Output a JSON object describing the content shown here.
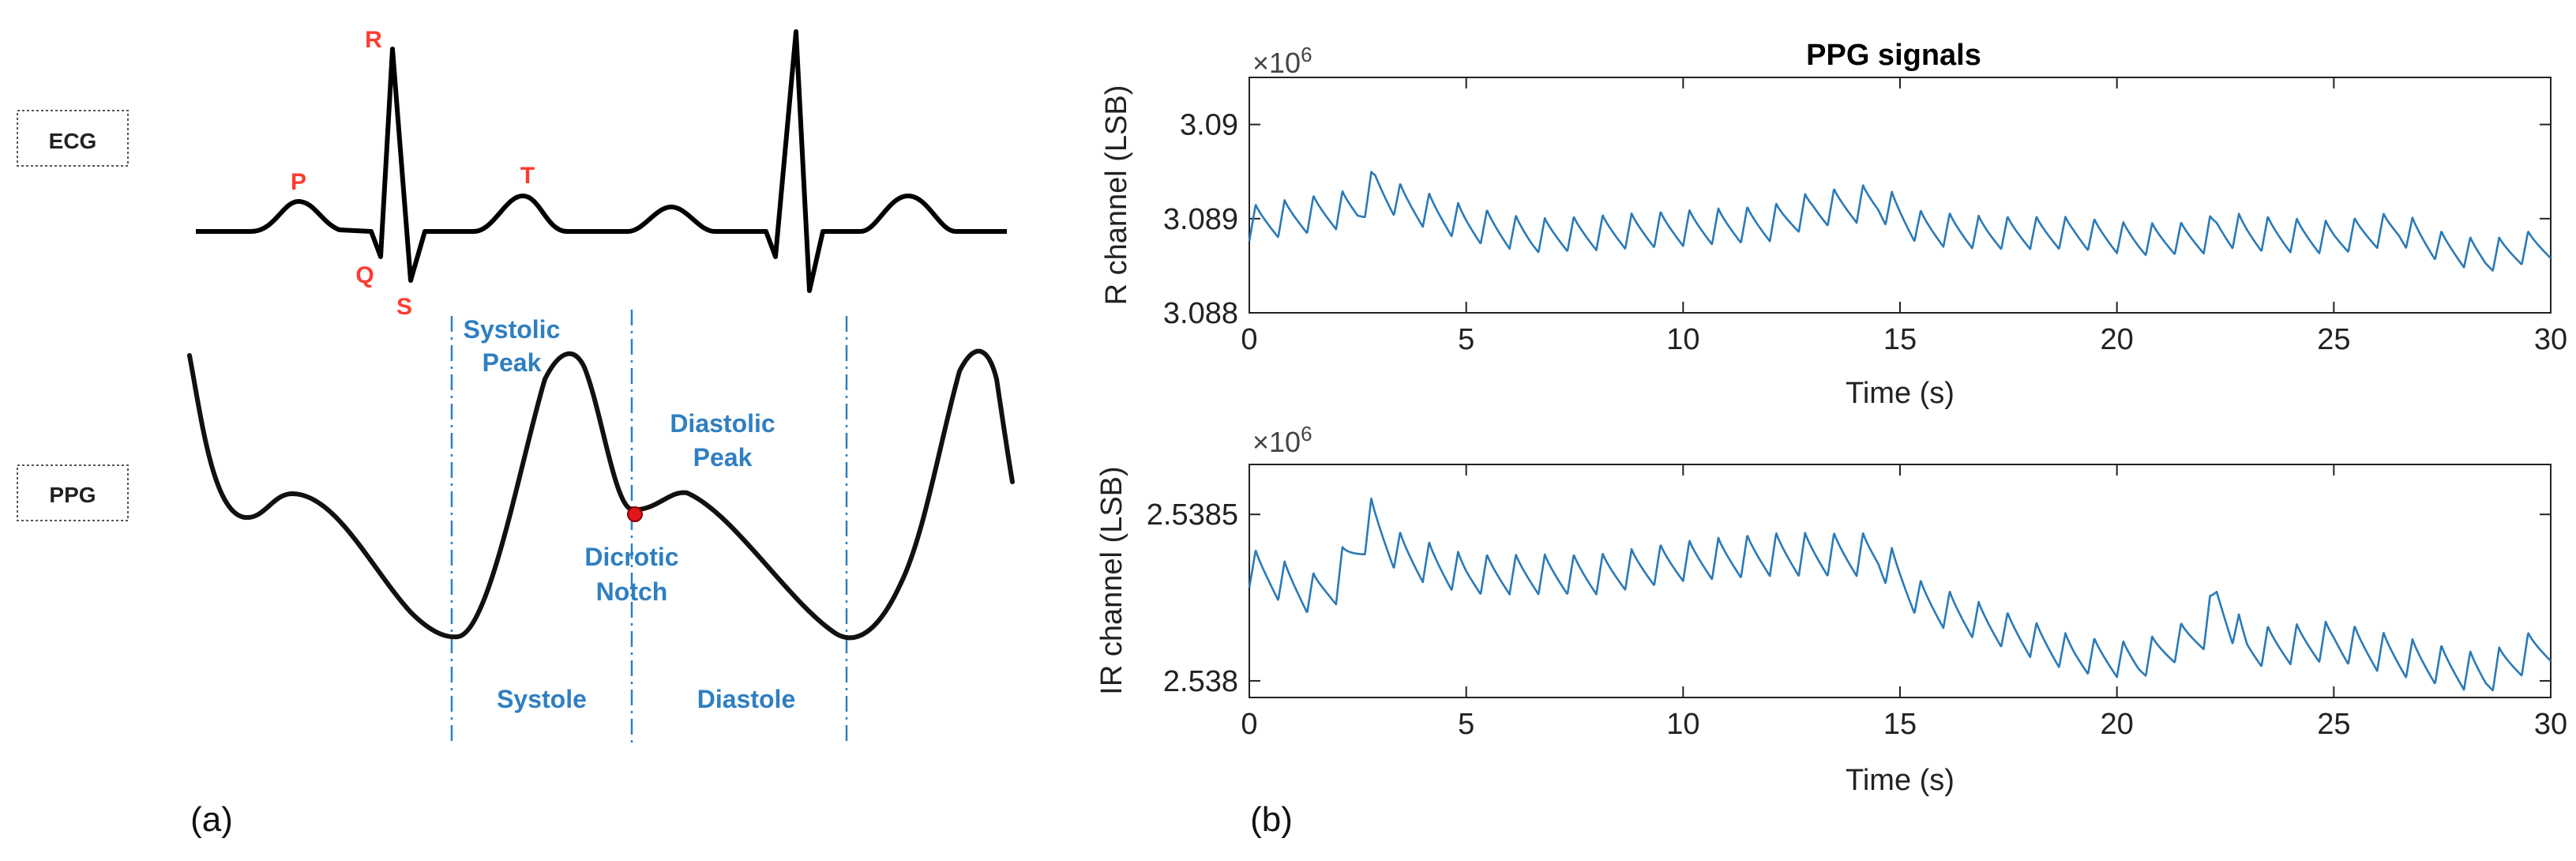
{
  "panel_a": {
    "panel_label": "(a)",
    "ecg_box_label": "ECG",
    "ppg_box_label": "PPG",
    "wave_labels": {
      "p": "P",
      "q": "Q",
      "r": "R",
      "s": "S",
      "t": "T"
    },
    "systolic_peak_line1": "Systolic",
    "systolic_peak_line2": "Peak",
    "diastolic_peak_line1": "Diastolic",
    "diastolic_peak_line2": "Peak",
    "dicrotic_notch_line1": "Dicrotic",
    "dicrotic_notch_line2": "Notch",
    "systole_label": "Systole",
    "diastole_label": "Diastole",
    "label_colors": {
      "ecg_wave": "#ff3b30",
      "ppg": "#2f7fc1",
      "notch_marker": "#e0161a"
    }
  },
  "panel_b": {
    "panel_label": "(b)",
    "title": "PPG signals",
    "series_color": "#2a7ab8",
    "r_plot": {
      "ylabel": "R channel (LSB)",
      "xlabel": "Time (s)",
      "exponent_base": "×10",
      "exponent_power": "6",
      "x_ticks": [
        "0",
        "5",
        "10",
        "15",
        "20",
        "25",
        "30"
      ],
      "y_ticks": [
        "3.09",
        "3.089",
        "3.088"
      ],
      "xlim": [
        0,
        30
      ],
      "ylim": [
        3.088,
        3.0905
      ]
    },
    "ir_plot": {
      "ylabel": "IR channel (LSB)",
      "xlabel": "Time (s)",
      "exponent_base": "×10",
      "exponent_power": "6",
      "x_ticks": [
        "0",
        "5",
        "10",
        "15",
        "20",
        "25",
        "30"
      ],
      "y_ticks": [
        "2.5385",
        "2.538"
      ],
      "xlim": [
        0,
        30
      ],
      "ylim": [
        2.53795,
        2.53865
      ]
    }
  },
  "chart_data": [
    {
      "type": "line",
      "title": "PPG signals",
      "xlabel": "Time (s)",
      "ylabel": "R channel (LSB)",
      "y_scale_factor": "×10^6",
      "xlim": [
        0,
        30
      ],
      "ylim": [
        3.088,
        3.0905
      ],
      "x_ticks": [
        0,
        5,
        10,
        15,
        20,
        25,
        30
      ],
      "y_ticks": [
        3.088,
        3.089,
        3.09
      ],
      "series": [
        {
          "color": "#2a7ab8",
          "pulse_rate_hz": 1.5,
          "x": [
            0,
            2.5,
            2.9,
            3.5,
            5,
            6.5,
            8,
            10,
            12,
            13,
            14.5,
            15.5,
            17,
            19,
            20.5,
            22,
            22.3,
            23,
            25,
            26.5,
            27.5,
            28.5,
            30
          ],
          "baseline": [
            3.08895,
            3.08912,
            3.08935,
            3.08918,
            3.08895,
            3.08882,
            3.08885,
            3.0889,
            3.08895,
            3.0891,
            3.08918,
            3.0889,
            3.08885,
            3.08885,
            3.08878,
            3.0888,
            3.0889,
            3.08885,
            3.0888,
            3.0889,
            3.0887,
            3.0886,
            3.08875
          ],
          "amplitude": [
            0.00038,
            0.0004,
            0.0004,
            0.00038,
            0.00038,
            0.00036,
            0.00037,
            0.00038,
            0.00038,
            0.00038,
            0.0004,
            0.00037,
            0.00035,
            0.00034,
            0.00034,
            0.00034,
            0.00038,
            0.00038,
            0.00035,
            0.00036,
            0.00033,
            0.00034,
            0.00034
          ]
        }
      ]
    },
    {
      "type": "line",
      "title": "",
      "xlabel": "Time (s)",
      "ylabel": "IR channel (LSB)",
      "y_scale_factor": "×10^6",
      "xlim": [
        0,
        30
      ],
      "ylim": [
        2.53795,
        2.53865
      ],
      "x_ticks": [
        0,
        5,
        10,
        15,
        20,
        25,
        30
      ],
      "y_ticks": [
        2.538,
        2.5385
      ],
      "series": [
        {
          "color": "#2a7ab8",
          "pulse_rate_hz": 1.5,
          "x": [
            0,
            1.5,
            2.0,
            2.8,
            3.5,
            5,
            8,
            10,
            12,
            14.5,
            15.5,
            17.5,
            19,
            20.5,
            22,
            22.3,
            23,
            25,
            27,
            28.5,
            30
          ],
          "baseline": [
            2.53834,
            2.53826,
            2.5383,
            2.53848,
            2.53838,
            2.53832,
            2.53832,
            2.53836,
            2.53838,
            2.53838,
            2.53824,
            2.53815,
            2.53808,
            2.53806,
            2.53815,
            2.53825,
            2.5381,
            2.53812,
            2.53806,
            2.53802,
            2.53812
          ],
          "amplitude": [
            0.00012,
            0.00013,
            0.00014,
            0.00014,
            0.00013,
            0.00012,
            0.00012,
            0.00012,
            0.00013,
            0.00013,
            0.00012,
            0.00011,
            0.00011,
            0.00011,
            0.00011,
            0.00012,
            0.00012,
            0.00012,
            0.00012,
            0.00012,
            0.00012
          ]
        }
      ]
    }
  ]
}
